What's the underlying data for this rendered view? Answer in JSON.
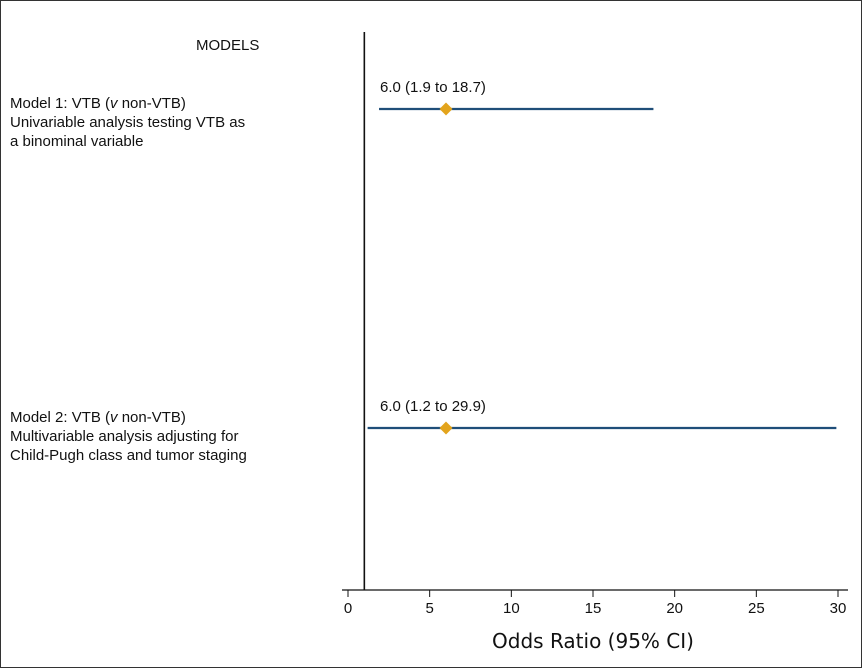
{
  "chart_data": {
    "type": "forest",
    "column_header": "MODELS",
    "xlabel": "Odds Ratio (95% CI)",
    "xlim": [
      0,
      30
    ],
    "xticks": [
      0,
      5,
      10,
      15,
      20,
      25,
      30
    ],
    "reference_line": 1,
    "colors": {
      "ci_line": "#1f4e79",
      "point": "#e3a41c"
    },
    "rows": [
      {
        "name": "Model 1",
        "label_lines": [
          "Model 1: VTB (v non-VTB)",
          "Univariable analysis testing VTB as",
          "a binominal variable"
        ],
        "estimate": 6.0,
        "ci_low": 1.9,
        "ci_high": 18.7,
        "text": "6.0 (1.9 to 18.7)"
      },
      {
        "name": "Model 2",
        "label_lines": [
          "Model 2: VTB (v non-VTB)",
          "Multivariable analysis adjusting for",
          "Child-Pugh class and tumor staging"
        ],
        "estimate": 6.0,
        "ci_low": 1.2,
        "ci_high": 29.9,
        "text": "6.0 (1.2 to 29.9)"
      }
    ]
  }
}
